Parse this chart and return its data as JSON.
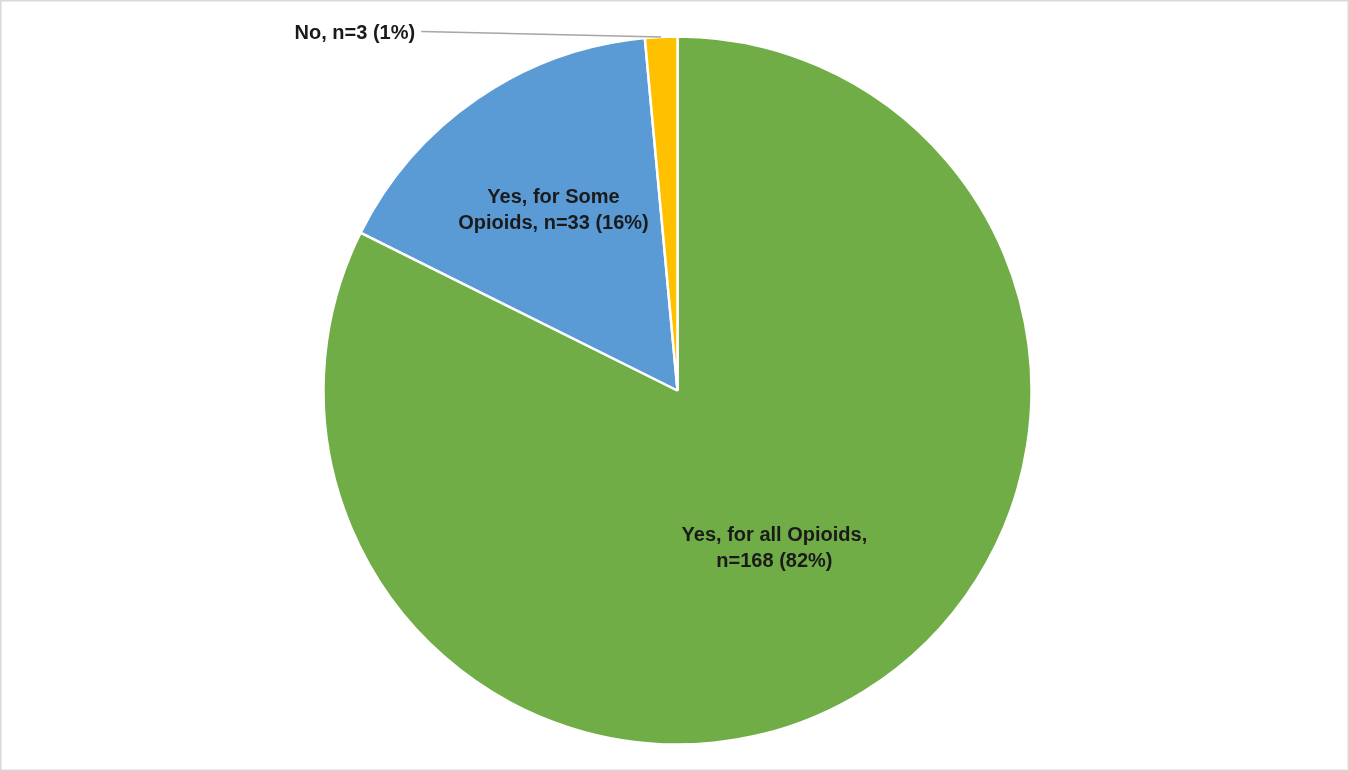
{
  "chart_data": {
    "type": "pie",
    "categories": [
      "Yes, for all Opioids, n=168 (82%)",
      "Yes, for Some Opioids, n=33 (16%)",
      "No, n=3 (1%)"
    ],
    "values": [
      168,
      33,
      3
    ],
    "colors": [
      "#70ad47",
      "#5b9bd5",
      "#ffc000"
    ]
  }
}
